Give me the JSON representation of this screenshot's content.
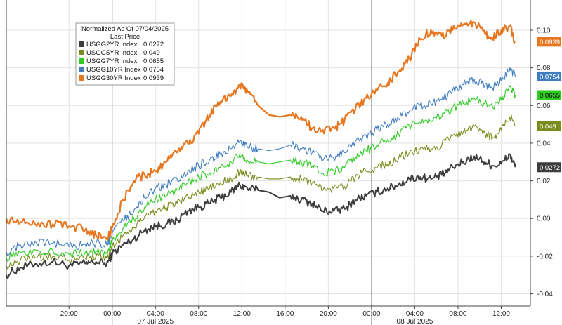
{
  "chart_data": {
    "type": "line",
    "legend": {
      "title": "Normalized As Of 07/04/2025",
      "subtitle": "Last Price",
      "placement": "top-left"
    },
    "y_ticks": [
      "0.10",
      "0.08",
      "0.06",
      "0.04",
      "0.02",
      "0.00",
      "-0.02",
      "-0.04"
    ],
    "y_tick_values": [
      0.1,
      0.08,
      0.06,
      0.04,
      0.02,
      0.0,
      -0.02,
      -0.04
    ],
    "ylim": [
      -0.0465,
      0.116
    ],
    "x_time_ticks": [
      "20:00",
      "00:00",
      "04:00",
      "08:00",
      "12:00",
      "16:00",
      "20:00",
      "00:00",
      "04:00",
      "08:00",
      "12:00"
    ],
    "x_time_hours": [
      20,
      24,
      28,
      32,
      36,
      40,
      44,
      48,
      52,
      56,
      60
    ],
    "x_date_labels": [
      "07 Jul 2025",
      "08 Jul 2025"
    ],
    "x_date_hours": [
      28,
      52
    ],
    "xlim_hours": [
      14.2,
      62.7
    ],
    "gap_hours": [
      36.8,
      40.5
    ],
    "grid": true,
    "series": [
      {
        "name": "USGG2YR Index",
        "last": "0.0272",
        "color": "#3d3d3d",
        "x": [
          14.2,
          15.5,
          17,
          18.5,
          20,
          21.5,
          22.5,
          23.5,
          24,
          25,
          26,
          27,
          28,
          29,
          30,
          31,
          32,
          33,
          34,
          35,
          35.8,
          36.5,
          37.5,
          38.5,
          39.5,
          40.5,
          41.5,
          42.5,
          43.5,
          44.5,
          45.5,
          46.5,
          47.5,
          48.5,
          49.5,
          50.5,
          51.5,
          52.5,
          53.5,
          54.5,
          55.5,
          56.5,
          57.5,
          58.5,
          59.2,
          60,
          60.8,
          61.3
        ],
        "y": [
          -0.03,
          -0.026,
          -0.024,
          -0.023,
          -0.025,
          -0.024,
          -0.023,
          -0.024,
          -0.019,
          -0.014,
          -0.011,
          -0.006,
          -0.004,
          -0.003,
          -0.001,
          0.004,
          0.006,
          0.008,
          0.011,
          0.014,
          0.018,
          0.016,
          0.015,
          0.014,
          0.011,
          0.012,
          0.01,
          0.008,
          0.004,
          0.004,
          0.005,
          0.01,
          0.012,
          0.014,
          0.016,
          0.018,
          0.021,
          0.022,
          0.021,
          0.023,
          0.027,
          0.03,
          0.033,
          0.03,
          0.028,
          0.029,
          0.034,
          0.0272
        ]
      },
      {
        "name": "USGG5YR Index",
        "last": "0.049",
        "color": "#7a8c1c",
        "x": [
          14.2,
          15.5,
          17,
          18.5,
          20,
          21.5,
          22.5,
          23.5,
          24,
          25,
          26,
          27,
          28,
          29,
          30,
          31,
          32,
          33,
          34,
          35,
          35.8,
          36.5,
          37.5,
          38.5,
          39.5,
          40.5,
          41.5,
          42.5,
          43.5,
          44.5,
          45.5,
          46.5,
          47.5,
          48.5,
          49.5,
          50.5,
          51.5,
          52.5,
          53.5,
          54.5,
          55.5,
          56.5,
          57.5,
          58.5,
          59.2,
          60,
          60.8,
          61.3
        ],
        "y": [
          -0.025,
          -0.022,
          -0.021,
          -0.02,
          -0.022,
          -0.021,
          -0.02,
          -0.021,
          -0.015,
          -0.009,
          -0.005,
          0.001,
          0.004,
          0.006,
          0.008,
          0.012,
          0.014,
          0.016,
          0.019,
          0.021,
          0.025,
          0.023,
          0.022,
          0.021,
          0.021,
          0.022,
          0.021,
          0.019,
          0.015,
          0.016,
          0.017,
          0.022,
          0.025,
          0.027,
          0.029,
          0.032,
          0.035,
          0.037,
          0.037,
          0.039,
          0.044,
          0.046,
          0.049,
          0.045,
          0.043,
          0.047,
          0.054,
          0.049
        ]
      },
      {
        "name": "USGG7YR Index",
        "last": "0.0655",
        "color": "#2ecc21",
        "x": [
          14.2,
          15.5,
          17,
          18.5,
          20,
          21.5,
          22.5,
          23.5,
          24,
          25,
          26,
          27,
          28,
          29,
          30,
          31,
          32,
          33,
          34,
          35,
          35.8,
          36.5,
          37.5,
          38.5,
          39.5,
          40.5,
          41.5,
          42.5,
          43.5,
          44.5,
          45.5,
          46.5,
          47.5,
          48.5,
          49.5,
          50.5,
          51.5,
          52.5,
          53.5,
          54.5,
          55.5,
          56.5,
          57.5,
          58.5,
          59.2,
          60,
          60.8,
          61.3
        ],
        "y": [
          -0.021,
          -0.018,
          -0.017,
          -0.017,
          -0.019,
          -0.018,
          -0.017,
          -0.018,
          -0.012,
          -0.005,
          0.0,
          0.006,
          0.01,
          0.012,
          0.015,
          0.019,
          0.022,
          0.024,
          0.027,
          0.03,
          0.034,
          0.031,
          0.03,
          0.029,
          0.03,
          0.031,
          0.03,
          0.028,
          0.024,
          0.025,
          0.027,
          0.033,
          0.036,
          0.039,
          0.042,
          0.045,
          0.049,
          0.051,
          0.052,
          0.054,
          0.059,
          0.061,
          0.064,
          0.061,
          0.059,
          0.063,
          0.07,
          0.0655
        ]
      },
      {
        "name": "USGG10YR Index",
        "last": "0.0754",
        "color": "#3f7cc0",
        "x": [
          14.2,
          15.5,
          17,
          18.5,
          20,
          21.5,
          22.5,
          23.5,
          24,
          25,
          26,
          27,
          28,
          29,
          30,
          31,
          32,
          33,
          34,
          35,
          35.8,
          36.5,
          37.5,
          38.5,
          39.5,
          40.5,
          41.5,
          42.5,
          43.5,
          44.5,
          45.5,
          46.5,
          47.5,
          48.5,
          49.5,
          50.5,
          51.5,
          52.5,
          53.5,
          54.5,
          55.5,
          56.5,
          57.5,
          58.5,
          59.2,
          60,
          60.8,
          61.3
        ],
        "y": [
          -0.018,
          -0.014,
          -0.013,
          -0.013,
          -0.015,
          -0.014,
          -0.013,
          -0.014,
          -0.008,
          -0.001,
          0.004,
          0.011,
          0.016,
          0.018,
          0.021,
          0.025,
          0.028,
          0.031,
          0.034,
          0.037,
          0.041,
          0.038,
          0.037,
          0.036,
          0.037,
          0.039,
          0.037,
          0.035,
          0.031,
          0.032,
          0.035,
          0.041,
          0.044,
          0.047,
          0.05,
          0.053,
          0.057,
          0.06,
          0.061,
          0.063,
          0.068,
          0.071,
          0.074,
          0.071,
          0.069,
          0.073,
          0.08,
          0.0754
        ]
      },
      {
        "name": "USGG30YR Index",
        "last": "0.0939",
        "color": "#e8761f",
        "x": [
          14.2,
          15.5,
          17,
          18.5,
          20,
          21.5,
          22.5,
          23.5,
          24,
          25,
          26,
          27,
          28,
          29,
          30,
          31,
          32,
          33,
          34,
          35,
          35.8,
          36.5,
          37.5,
          38.5,
          39.5,
          40.5,
          41.5,
          42.5,
          43.5,
          44.5,
          45.5,
          46.5,
          47.5,
          48.5,
          49.5,
          50.5,
          51.5,
          52.5,
          53.5,
          54.5,
          55.5,
          56.5,
          57.5,
          58.5,
          59.2,
          60,
          60.8,
          61.3
        ],
        "y": [
          0.0,
          -0.002,
          -0.004,
          -0.003,
          -0.004,
          -0.006,
          -0.009,
          -0.011,
          -0.005,
          0.01,
          0.02,
          0.023,
          0.025,
          0.03,
          0.035,
          0.04,
          0.045,
          0.055,
          0.062,
          0.065,
          0.071,
          0.068,
          0.06,
          0.055,
          0.054,
          0.055,
          0.054,
          0.048,
          0.047,
          0.048,
          0.052,
          0.058,
          0.064,
          0.068,
          0.072,
          0.078,
          0.085,
          0.095,
          0.1,
          0.097,
          0.1,
          0.103,
          0.104,
          0.098,
          0.096,
          0.1,
          0.102,
          0.0939
        ]
      }
    ]
  }
}
